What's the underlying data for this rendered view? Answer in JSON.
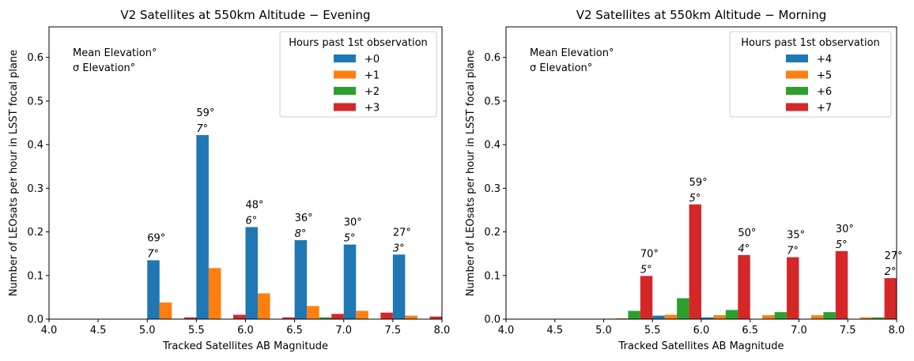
{
  "chart_data": [
    {
      "type": "bar",
      "title": "V2 Satellites at 550km Altitude − Evening",
      "xlabel": "Tracked Satellites AB Magnitude",
      "ylabel": "Number of LEOsats per hour in LSST focal plane",
      "xlim": [
        4.0,
        8.0
      ],
      "ylim": [
        0,
        0.67
      ],
      "xticks": [
        "4.0",
        "4.5",
        "5.0",
        "5.5",
        "6.0",
        "6.5",
        "7.0",
        "7.5",
        "8.0"
      ],
      "yticks": [
        "0.0",
        "0.1",
        "0.2",
        "0.3",
        "0.4",
        "0.5",
        "0.6"
      ],
      "bins": [
        5.0,
        5.5,
        6.0,
        6.5,
        7.0,
        7.5
      ],
      "bin_width": 0.5,
      "legend_title": "Hours past 1st observation",
      "series": [
        {
          "name": "+0",
          "color": "#1f77b4",
          "values": [
            0.135,
            0.422,
            0.211,
            0.181,
            0.171,
            0.148
          ]
        },
        {
          "name": "+1",
          "color": "#ff7f0e",
          "values": [
            0.038,
            0.117,
            0.059,
            0.03,
            0.019,
            0.008
          ]
        },
        {
          "name": "+2",
          "color": "#2ca02c",
          "values": [
            0.001,
            0.0,
            0.0,
            0.004,
            0.0,
            0.0
          ]
        },
        {
          "name": "+3",
          "color": "#d62728",
          "values": [
            0.004,
            0.01,
            0.004,
            0.012,
            0.015,
            0.006
          ]
        }
      ],
      "header_annotation": [
        "Mean Elevation°",
        "σ Elevation°"
      ],
      "bar_annotations": [
        {
          "bin": 5.0,
          "series": 0,
          "mean": "69°",
          "sigma": "7°"
        },
        {
          "bin": 5.5,
          "series": 0,
          "mean": "59°",
          "sigma": "7°"
        },
        {
          "bin": 6.0,
          "series": 0,
          "mean": "48°",
          "sigma": "6°"
        },
        {
          "bin": 6.5,
          "series": 0,
          "mean": "36°",
          "sigma": "8°"
        },
        {
          "bin": 7.0,
          "series": 0,
          "mean": "30°",
          "sigma": "5°"
        },
        {
          "bin": 7.5,
          "series": 0,
          "mean": "27°",
          "sigma": "3°"
        }
      ]
    },
    {
      "type": "bar",
      "title": "V2 Satellites at 550km Altitude − Morning",
      "xlabel": "Tracked Satellites AB Magnitude",
      "ylabel": "Number of LEOsats per hour in LSST focal plane",
      "xlim": [
        4.0,
        8.0
      ],
      "ylim": [
        0,
        0.67
      ],
      "xticks": [
        "4.0",
        "4.5",
        "5.0",
        "5.5",
        "6.0",
        "6.5",
        "7.0",
        "7.5",
        "8.0"
      ],
      "yticks": [
        "0.0",
        "0.1",
        "0.2",
        "0.3",
        "0.4",
        "0.5",
        "0.6"
      ],
      "bins": [
        5.0,
        5.5,
        6.0,
        6.5,
        7.0,
        7.5
      ],
      "bin_width": 0.5,
      "legend_title": "Hours past 1st observation",
      "series": [
        {
          "name": "+4",
          "color": "#1f77b4",
          "values": [
            0.001,
            0.008,
            0.004,
            0.0,
            0.001,
            0.0
          ]
        },
        {
          "name": "+5",
          "color": "#ff7f0e",
          "values": [
            0.002,
            0.01,
            0.009,
            0.009,
            0.009,
            0.004
          ]
        },
        {
          "name": "+6",
          "color": "#2ca02c",
          "values": [
            0.019,
            0.048,
            0.021,
            0.016,
            0.016,
            0.004
          ]
        },
        {
          "name": "+7",
          "color": "#d62728",
          "values": [
            0.099,
            0.263,
            0.147,
            0.142,
            0.156,
            0.094
          ]
        }
      ],
      "header_annotation": [
        "Mean Elevation°",
        "σ Elevation°"
      ],
      "bar_annotations": [
        {
          "bin": 5.0,
          "series": 3,
          "mean": "70°",
          "sigma": "5°"
        },
        {
          "bin": 5.5,
          "series": 3,
          "mean": "59°",
          "sigma": "5°"
        },
        {
          "bin": 6.0,
          "series": 3,
          "mean": "50°",
          "sigma": "4°"
        },
        {
          "bin": 6.5,
          "series": 3,
          "mean": "35°",
          "sigma": "7°"
        },
        {
          "bin": 7.0,
          "series": 3,
          "mean": "30°",
          "sigma": "5°"
        },
        {
          "bin": 7.5,
          "series": 3,
          "mean": "27°",
          "sigma": "2°"
        }
      ]
    }
  ]
}
